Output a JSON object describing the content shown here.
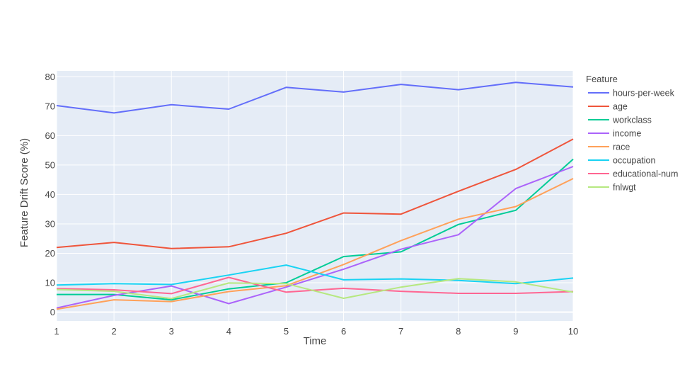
{
  "chart_data": {
    "type": "line",
    "xlabel": "Time",
    "ylabel": "Feature Drift Score (%)",
    "legend_title": "Feature",
    "legend_position": "right",
    "grid": true,
    "xlim": [
      1,
      10
    ],
    "ylim": [
      -3,
      82
    ],
    "x_ticks": [
      1,
      2,
      3,
      4,
      5,
      6,
      7,
      8,
      9,
      10
    ],
    "y_ticks": [
      0,
      10,
      20,
      30,
      40,
      50,
      60,
      70,
      80
    ],
    "x": [
      1,
      2,
      3,
      4,
      5,
      6,
      7,
      8,
      9,
      10
    ],
    "series": [
      {
        "name": "hours-per-week",
        "color": "#636efa",
        "values": [
          70.2,
          67.7,
          70.5,
          69.0,
          76.4,
          74.8,
          77.4,
          75.6,
          78.1,
          76.5
        ]
      },
      {
        "name": "age",
        "color": "#ef553b",
        "values": [
          22.0,
          23.7,
          21.6,
          22.2,
          26.8,
          33.7,
          33.3,
          41.1,
          48.5,
          58.8
        ]
      },
      {
        "name": "workclass",
        "color": "#00cc96",
        "values": [
          6.0,
          6.0,
          4.2,
          7.9,
          10.0,
          18.9,
          20.5,
          29.8,
          34.6,
          52.0
        ]
      },
      {
        "name": "income",
        "color": "#ab63fa",
        "values": [
          1.4,
          5.7,
          8.9,
          2.9,
          8.5,
          14.6,
          21.4,
          26.3,
          42.0,
          49.5
        ]
      },
      {
        "name": "race",
        "color": "#ffa15a",
        "values": [
          1.0,
          4.2,
          3.6,
          7.0,
          9.0,
          16.2,
          24.3,
          31.6,
          35.9,
          45.4
        ]
      },
      {
        "name": "occupation",
        "color": "#19d3f3",
        "values": [
          9.2,
          9.7,
          9.4,
          12.6,
          16.0,
          11.0,
          11.3,
          10.8,
          9.7,
          11.6
        ]
      },
      {
        "name": "educational-num",
        "color": "#ff6692",
        "values": [
          8.0,
          7.6,
          6.3,
          11.8,
          6.8,
          8.1,
          7.1,
          6.4,
          6.4,
          7.0
        ]
      },
      {
        "name": "fnlwgt",
        "color": "#b6e880",
        "values": [
          7.7,
          7.1,
          4.6,
          9.9,
          9.7,
          4.7,
          8.5,
          11.4,
          10.3,
          6.8
        ]
      }
    ]
  }
}
